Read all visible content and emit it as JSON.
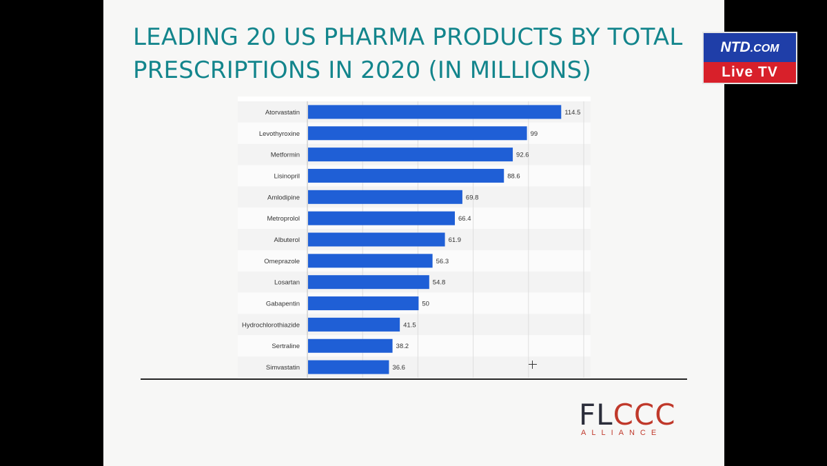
{
  "slide": {
    "title": "LEADING 20 US PHARMA PRODUCTS BY TOTAL PRESCRIPTIONS IN 2020 (IN MILLIONS)"
  },
  "logo": {
    "main_dark": "FL",
    "main_red": "CCC",
    "sub": "ALLIANCE"
  },
  "overlay": {
    "brand": "NTD",
    "domain": ".COM",
    "live": "Live TV"
  },
  "chart_data": {
    "type": "bar",
    "orientation": "horizontal",
    "title": "",
    "xlabel": "",
    "ylabel": "",
    "xlim": [
      0,
      125
    ],
    "grid": true,
    "bar_color": "#1f5fd6",
    "categories": [
      "Atorvastatin",
      "Levothyroxine",
      "Metformin",
      "Lisinopril",
      "Amlodipine",
      "Metroprolol",
      "Albuterol",
      "Omeprazole",
      "Losartan",
      "Gabapentin",
      "Hydrochlorothiazide",
      "Sertraline",
      "Simvastatin"
    ],
    "values": [
      114.5,
      99,
      92.6,
      88.6,
      69.8,
      66.4,
      61.9,
      56.3,
      54.8,
      50,
      41.5,
      38.2,
      36.6
    ],
    "value_labels": [
      "114.5",
      "99",
      "92.6",
      "88.6",
      "69.8",
      "66.4",
      "61.9",
      "56.3",
      "54.8",
      "50",
      "41.5",
      "38.2",
      "36.6"
    ]
  }
}
